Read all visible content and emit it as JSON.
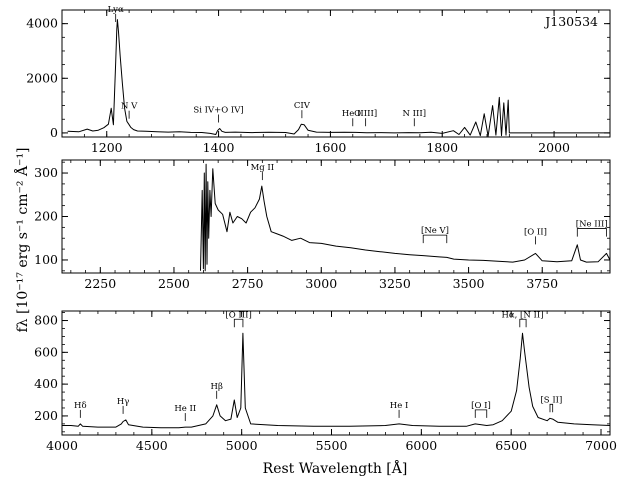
{
  "chart_data": [
    {
      "type": "line",
      "panel": "top",
      "label": "J130534",
      "xlim": [
        1120,
        2100
      ],
      "ylim": [
        -150,
        4500
      ],
      "xticks": [
        1200,
        1400,
        1600,
        1800,
        2000
      ],
      "yticks": [
        0,
        2000,
        4000
      ],
      "series": [
        {
          "points": [
            [
              1130,
              60
            ],
            [
              1150,
              40
            ],
            [
              1165,
              140
            ],
            [
              1175,
              70
            ],
            [
              1185,
              100
            ],
            [
              1195,
              190
            ],
            [
              1203,
              320
            ],
            [
              1208,
              900
            ],
            [
              1212,
              300
            ],
            [
              1216,
              2600
            ],
            [
              1218,
              3800
            ],
            [
              1219,
              4150
            ],
            [
              1221,
              3700
            ],
            [
              1224,
              2800
            ],
            [
              1228,
              1800
            ],
            [
              1232,
              900
            ],
            [
              1236,
              420
            ],
            [
              1240,
              300
            ],
            [
              1243,
              200
            ],
            [
              1248,
              120
            ],
            [
              1255,
              70
            ],
            [
              1270,
              60
            ],
            [
              1290,
              45
            ],
            [
              1310,
              30
            ],
            [
              1330,
              40
            ],
            [
              1350,
              20
            ],
            [
              1370,
              15
            ],
            [
              1385,
              -20
            ],
            [
              1395,
              -60
            ],
            [
              1398,
              80
            ],
            [
              1402,
              160
            ],
            [
              1406,
              60
            ],
            [
              1412,
              20
            ],
            [
              1430,
              30
            ],
            [
              1460,
              10
            ],
            [
              1490,
              25
            ],
            [
              1520,
              15
            ],
            [
              1535,
              -40
            ],
            [
              1543,
              120
            ],
            [
              1548,
              320
            ],
            [
              1553,
              300
            ],
            [
              1560,
              100
            ],
            [
              1575,
              30
            ],
            [
              1600,
              20
            ],
            [
              1625,
              25
            ],
            [
              1645,
              20
            ],
            [
              1665,
              5
            ],
            [
              1690,
              10
            ],
            [
              1715,
              0
            ],
            [
              1740,
              10
            ],
            [
              1760,
              5
            ],
            [
              1780,
              25
            ],
            [
              1800,
              -20
            ],
            [
              1820,
              80
            ],
            [
              1830,
              -60
            ],
            [
              1840,
              200
            ],
            [
              1850,
              -80
            ],
            [
              1860,
              400
            ],
            [
              1868,
              -100
            ],
            [
              1875,
              700
            ],
            [
              1882,
              -120
            ],
            [
              1890,
              1000
            ],
            [
              1896,
              -80
            ],
            [
              1902,
              1300
            ],
            [
              1906,
              -100
            ],
            [
              1910,
              1100
            ],
            [
              1914,
              -80
            ],
            [
              1918,
              1200
            ],
            [
              1920,
              0
            ],
            [
              2100,
              0
            ]
          ]
        }
      ],
      "annotations": [
        {
          "text": "Lyα",
          "x": 1216,
          "y": 4150
        },
        {
          "text": "N V",
          "x": 1240,
          "y": 300
        },
        {
          "text": "Si IV+O IV]",
          "x": 1400,
          "y": 160
        },
        {
          "text": "CIV",
          "x": 1549,
          "y": 320
        },
        {
          "text": "He II",
          "x": 1640,
          "y": 25
        },
        {
          "text": "O III]",
          "x": 1663,
          "y": 25
        },
        {
          "text": "N III]",
          "x": 1750,
          "y": 25
        }
      ]
    },
    {
      "type": "line",
      "panel": "middle",
      "xlim": [
        2120,
        3980
      ],
      "ylim": [
        70,
        330
      ],
      "xticks": [
        2250,
        2500,
        2750,
        3000,
        3250,
        3500,
        3750
      ],
      "yticks": [
        100,
        200,
        300
      ],
      "series": [
        {
          "points": [
            [
              2590,
              75
            ],
            [
              2596,
              260
            ],
            [
              2600,
              80
            ],
            [
              2603,
              300
            ],
            [
              2606,
              75
            ],
            [
              2609,
              320
            ],
            [
              2612,
              90
            ],
            [
              2615,
              280
            ],
            [
              2618,
              150
            ],
            [
              2622,
              260
            ],
            [
              2626,
              200
            ],
            [
              2632,
              310
            ],
            [
              2640,
              230
            ],
            [
              2650,
              215
            ],
            [
              2665,
              205
            ],
            [
              2680,
              165
            ],
            [
              2690,
              210
            ],
            [
              2700,
              185
            ],
            [
              2715,
              200
            ],
            [
              2730,
              195
            ],
            [
              2745,
              185
            ],
            [
              2760,
              210
            ],
            [
              2775,
              220
            ],
            [
              2790,
              240
            ],
            [
              2798,
              270
            ],
            [
              2806,
              235
            ],
            [
              2815,
              200
            ],
            [
              2830,
              165
            ],
            [
              2850,
              160
            ],
            [
              2870,
              155
            ],
            [
              2900,
              145
            ],
            [
              2930,
              150
            ],
            [
              2960,
              140
            ],
            [
              3000,
              138
            ],
            [
              3050,
              132
            ],
            [
              3100,
              128
            ],
            [
              3150,
              123
            ],
            [
              3200,
              119
            ],
            [
              3250,
              115
            ],
            [
              3300,
              112
            ],
            [
              3346,
              110
            ],
            [
              3400,
              107
            ],
            [
              3426,
              106
            ],
            [
              3450,
              102
            ],
            [
              3500,
              100
            ],
            [
              3550,
              99
            ],
            [
              3600,
              97
            ],
            [
              3650,
              95
            ],
            [
              3690,
              100
            ],
            [
              3727,
              115
            ],
            [
              3750,
              98
            ],
            [
              3800,
              96
            ],
            [
              3850,
              98
            ],
            [
              3869,
              135
            ],
            [
              3880,
              100
            ],
            [
              3900,
              95
            ],
            [
              3940,
              96
            ],
            [
              3968,
              115
            ],
            [
              3980,
              100
            ]
          ]
        }
      ],
      "annotations": [
        {
          "text": "Mg II",
          "x": 2800,
          "y": 270
        },
        {
          "text": "[Ne V]",
          "x": 3386,
          "y": 125,
          "bracket": [
            3346,
            3426
          ]
        },
        {
          "text": "[O II]",
          "x": 3727,
          "y": 122
        },
        {
          "text": "[Ne III]",
          "x": 3918,
          "y": 140,
          "bracket": [
            3869,
            3968
          ]
        }
      ]
    },
    {
      "type": "line",
      "panel": "bottom",
      "xlim": [
        4000,
        7050
      ],
      "ylim": [
        80,
        860
      ],
      "xticks": [
        4000,
        4500,
        5000,
        5500,
        6000,
        6500,
        7000
      ],
      "yticks": [
        200,
        400,
        600,
        800
      ],
      "series": [
        {
          "points": [
            [
              4000,
              140
            ],
            [
              4050,
              140
            ],
            [
              4090,
              135
            ],
            [
              4102,
              150
            ],
            [
              4115,
              135
            ],
            [
              4200,
              130
            ],
            [
              4300,
              130
            ],
            [
              4330,
              150
            ],
            [
              4340,
              165
            ],
            [
              4355,
              175
            ],
            [
              4370,
              145
            ],
            [
              4450,
              130
            ],
            [
              4550,
              125
            ],
            [
              4650,
              125
            ],
            [
              4686,
              130
            ],
            [
              4720,
              130
            ],
            [
              4800,
              150
            ],
            [
              4840,
              200
            ],
            [
              4861,
              270
            ],
            [
              4880,
              200
            ],
            [
              4910,
              170
            ],
            [
              4940,
              180
            ],
            [
              4959,
              300
            ],
            [
              4975,
              190
            ],
            [
              4995,
              250
            ],
            [
              5007,
              720
            ],
            [
              5020,
              250
            ],
            [
              5050,
              150
            ],
            [
              5200,
              140
            ],
            [
              5400,
              135
            ],
            [
              5600,
              135
            ],
            [
              5800,
              140
            ],
            [
              5876,
              150
            ],
            [
              5950,
              140
            ],
            [
              6100,
              135
            ],
            [
              6250,
              135
            ],
            [
              6300,
              150
            ],
            [
              6364,
              140
            ],
            [
              6400,
              145
            ],
            [
              6450,
              170
            ],
            [
              6500,
              230
            ],
            [
              6530,
              360
            ],
            [
              6550,
              560
            ],
            [
              6563,
              720
            ],
            [
              6575,
              600
            ],
            [
              6600,
              380
            ],
            [
              6620,
              260
            ],
            [
              6650,
              190
            ],
            [
              6700,
              170
            ],
            [
              6716,
              185
            ],
            [
              6731,
              180
            ],
            [
              6760,
              160
            ],
            [
              6850,
              150
            ],
            [
              6950,
              145
            ],
            [
              7050,
              140
            ]
          ]
        }
      ],
      "annotations": [
        {
          "text": "Hδ",
          "x": 4102,
          "y": 150
        },
        {
          "text": "Hγ",
          "x": 4340,
          "y": 175
        },
        {
          "text": "He II",
          "x": 4686,
          "y": 130
        },
        {
          "text": "Hβ",
          "x": 4861,
          "y": 270
        },
        {
          "text": "[O III]",
          "x": 4983,
          "y": 720,
          "bracket": [
            4959,
            5007
          ]
        },
        {
          "text": "He I",
          "x": 5876,
          "y": 150
        },
        {
          "text": "[O I]",
          "x": 6332,
          "y": 150,
          "bracket": [
            6300,
            6364
          ]
        },
        {
          "text": "Hα, [N II]",
          "x": 6563,
          "y": 720,
          "bracket": [
            6548,
            6583
          ]
        },
        {
          "text": "[S II]",
          "x": 6724,
          "y": 185,
          "bracket": [
            6716,
            6731
          ]
        }
      ]
    }
  ],
  "axes": {
    "xlabel": "Rest Wavelength [Å]",
    "ylabel": "fλ [10⁻¹⁷ erg s⁻¹ cm⁻² Å⁻¹]"
  }
}
